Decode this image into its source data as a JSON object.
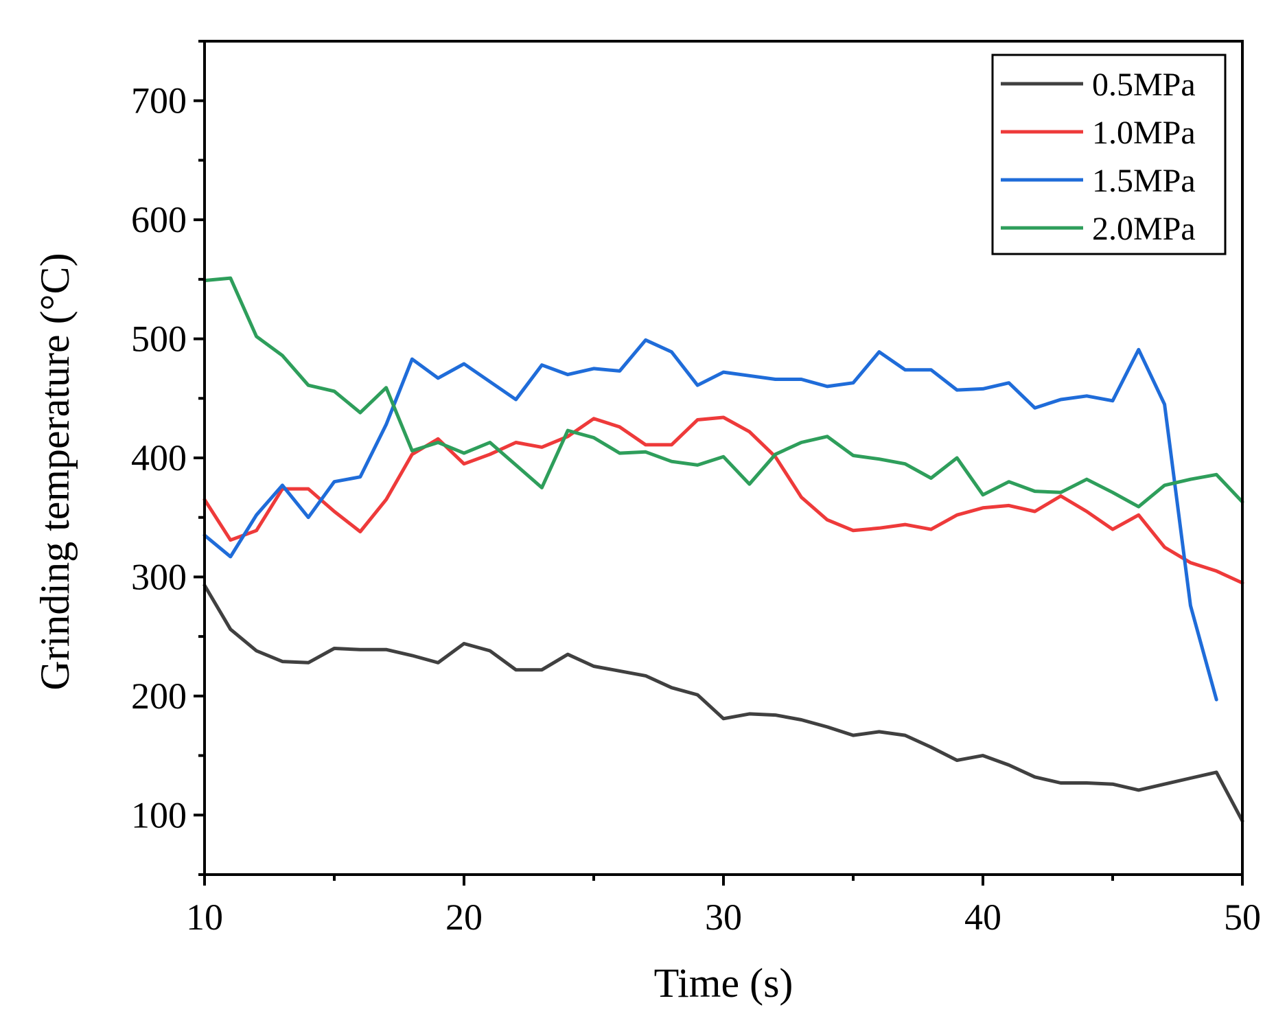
{
  "chart_data": {
    "type": "line",
    "title": "",
    "xlabel": "Time (s)",
    "ylabel": "Grinding temperature (°C)",
    "xlim": [
      10,
      50
    ],
    "ylim": [
      50,
      750
    ],
    "x_ticks": [
      10,
      20,
      30,
      40,
      50
    ],
    "y_ticks": [
      100,
      200,
      300,
      400,
      500,
      600,
      700
    ],
    "x_tick_labels": [
      "10",
      "20",
      "30",
      "40",
      "50"
    ],
    "y_tick_labels": [
      "100",
      "200",
      "300",
      "400",
      "500",
      "600",
      "700"
    ],
    "grid": false,
    "legend_position": "top-right",
    "series": [
      {
        "name": "0.5MPa",
        "color": "#404040",
        "x": [
          10,
          11,
          12,
          13,
          14,
          15,
          16,
          17,
          18,
          19,
          20,
          21,
          22,
          23,
          24,
          25,
          26,
          27,
          28,
          29,
          30,
          31,
          32,
          33,
          34,
          35,
          36,
          37,
          38,
          39,
          40,
          41,
          42,
          43,
          44,
          45,
          46,
          47,
          48,
          49,
          50
        ],
        "values": [
          293,
          256,
          238,
          229,
          228,
          240,
          239,
          239,
          234,
          228,
          244,
          238,
          222,
          222,
          235,
          225,
          221,
          217,
          207,
          201,
          181,
          185,
          184,
          180,
          174,
          167,
          170,
          167,
          157,
          146,
          150,
          142,
          132,
          127,
          127,
          126,
          121,
          126,
          131,
          136,
          95
        ]
      },
      {
        "name": "1.0MPa",
        "color": "#ee3a3a",
        "x": [
          10,
          11,
          12,
          13,
          14,
          15,
          16,
          17,
          18,
          19,
          20,
          21,
          22,
          23,
          24,
          25,
          26,
          27,
          28,
          29,
          30,
          31,
          32,
          33,
          34,
          35,
          36,
          37,
          38,
          39,
          40,
          41,
          42,
          43,
          44,
          45,
          46,
          47,
          48,
          49,
          50
        ],
        "values": [
          365,
          331,
          339,
          374,
          374,
          355,
          338,
          365,
          403,
          416,
          395,
          403,
          413,
          409,
          418,
          433,
          426,
          411,
          411,
          432,
          434,
          422,
          401,
          367,
          348,
          339,
          341,
          344,
          340,
          352,
          358,
          360,
          355,
          368,
          355,
          340,
          352,
          325,
          312,
          305,
          295
        ]
      },
      {
        "name": "1.5MPa",
        "color": "#1f6cd9",
        "x": [
          10,
          11,
          12,
          13,
          14,
          15,
          16,
          17,
          18,
          19,
          20,
          21,
          22,
          23,
          24,
          25,
          26,
          27,
          28,
          29,
          30,
          31,
          32,
          33,
          34,
          35,
          36,
          37,
          38,
          39,
          40,
          41,
          42,
          43,
          44,
          45,
          46,
          47,
          48,
          49
        ],
        "values": [
          335,
          317,
          352,
          377,
          350,
          380,
          384,
          428,
          483,
          467,
          479,
          464,
          449,
          478,
          470,
          475,
          473,
          499,
          489,
          461,
          472,
          469,
          466,
          466,
          460,
          463,
          489,
          474,
          474,
          457,
          458,
          463,
          442,
          449,
          452,
          448,
          491,
          445,
          276,
          197
        ]
      },
      {
        "name": "2.0MPa",
        "color": "#2e9e5b",
        "x": [
          10,
          11,
          12,
          13,
          14,
          15,
          16,
          17,
          18,
          19,
          20,
          21,
          22,
          23,
          24,
          25,
          26,
          27,
          28,
          29,
          30,
          31,
          32,
          33,
          34,
          35,
          36,
          37,
          38,
          39,
          40,
          41,
          42,
          43,
          44,
          45,
          46,
          47,
          48,
          49,
          50
        ],
        "values": [
          549,
          551,
          502,
          486,
          461,
          456,
          438,
          459,
          406,
          413,
          404,
          413,
          394,
          375,
          423,
          417,
          404,
          405,
          397,
          394,
          401,
          378,
          403,
          413,
          418,
          402,
          399,
          395,
          383,
          400,
          369,
          380,
          372,
          371,
          382,
          371,
          359,
          377,
          382,
          386,
          363
        ]
      }
    ]
  }
}
